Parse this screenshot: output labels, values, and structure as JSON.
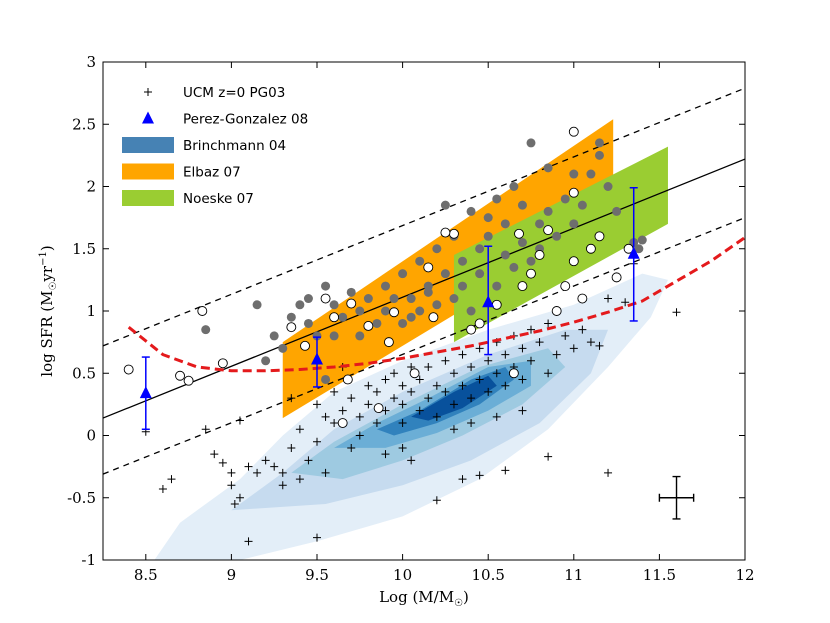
{
  "chart_data": {
    "type": "scatter",
    "xlabel": "Log (M/M",
    "xlabel_sub": "☉",
    "xlabel_close": ")",
    "ylabel": "log SFR (M",
    "ylabel_sub": "☉",
    "ylabel_unit": "yr",
    "ylabel_sup": "−1",
    "ylabel_close": ")",
    "xlim": [
      8.25,
      12.0
    ],
    "ylim": [
      -1.0,
      3.0
    ],
    "xticks": [
      8.5,
      9,
      9.5,
      10,
      10.5,
      11,
      11.5,
      12
    ],
    "xtick_labels": [
      "8.5",
      "9",
      "9.5",
      "10",
      "10.5",
      "11",
      "11.5",
      "12"
    ],
    "yticks": [
      -1,
      -0.5,
      0,
      0.5,
      1,
      1.5,
      2,
      2.5,
      3
    ],
    "ytick_labels": [
      "-1",
      "-0.5",
      "0",
      "0.5",
      "1",
      "1.5",
      "2",
      "2.5",
      "3"
    ],
    "legend": [
      {
        "label": "UCM z=0 PG03",
        "marker": "plus",
        "color": "#000000"
      },
      {
        "label": "Perez-Gonzalez 08",
        "marker": "triangle",
        "color": "#0000ff"
      },
      {
        "label": "Brinchmann 04",
        "marker": "patch",
        "color": "#4682b4"
      },
      {
        "label": "Elbaz 07",
        "marker": "patch",
        "color": "#ffa500"
      },
      {
        "label": "Noeske 07",
        "marker": "patch",
        "color": "#9acd32"
      }
    ],
    "colors": {
      "brinchmann": "#2166ac",
      "elbaz": "#ffa500",
      "noeske": "#9acd32",
      "triangle": "#0000ff",
      "dashed_red": "#e41a1c",
      "filled_circle": "#6e6e6e"
    },
    "brinchmann_contours": [
      {
        "level": 1,
        "points": [
          [
            8.55,
            -1
          ],
          [
            8.7,
            -0.7
          ],
          [
            9.05,
            -0.35
          ],
          [
            9.3,
            0
          ],
          [
            9.6,
            0.35
          ],
          [
            10.0,
            0.6
          ],
          [
            10.5,
            0.85
          ],
          [
            11.0,
            1.05
          ],
          [
            11.4,
            1.3
          ],
          [
            11.55,
            1.25
          ],
          [
            11.45,
            0.95
          ],
          [
            11.2,
            0.55
          ],
          [
            10.85,
            0.05
          ],
          [
            10.45,
            -0.35
          ],
          [
            10.0,
            -0.65
          ],
          [
            9.5,
            -0.85
          ],
          [
            9.05,
            -1
          ]
        ]
      },
      {
        "level": 2,
        "points": [
          [
            9.0,
            -0.6
          ],
          [
            9.3,
            -0.3
          ],
          [
            9.6,
            0.05
          ],
          [
            10.0,
            0.35
          ],
          [
            10.5,
            0.65
          ],
          [
            10.95,
            0.85
          ],
          [
            11.2,
            0.85
          ],
          [
            11.1,
            0.5
          ],
          [
            10.8,
            0.1
          ],
          [
            10.4,
            -0.2
          ],
          [
            10.0,
            -0.4
          ],
          [
            9.55,
            -0.55
          ]
        ]
      },
      {
        "level": 3,
        "points": [
          [
            9.35,
            -0.3
          ],
          [
            9.6,
            -0.05
          ],
          [
            10.0,
            0.25
          ],
          [
            10.45,
            0.55
          ],
          [
            10.85,
            0.7
          ],
          [
            10.95,
            0.55
          ],
          [
            10.7,
            0.25
          ],
          [
            10.35,
            0.0
          ],
          [
            10.0,
            -0.2
          ],
          [
            9.65,
            -0.35
          ]
        ]
      },
      {
        "level": 4,
        "points": [
          [
            9.6,
            -0.1
          ],
          [
            9.85,
            0.1
          ],
          [
            10.15,
            0.3
          ],
          [
            10.5,
            0.55
          ],
          [
            10.75,
            0.6
          ],
          [
            10.75,
            0.4
          ],
          [
            10.5,
            0.2
          ],
          [
            10.2,
            0.02
          ],
          [
            9.9,
            -0.1
          ]
        ]
      },
      {
        "level": 5,
        "points": [
          [
            9.85,
            0.05
          ],
          [
            10.1,
            0.2
          ],
          [
            10.4,
            0.45
          ],
          [
            10.6,
            0.55
          ],
          [
            10.65,
            0.45
          ],
          [
            10.45,
            0.25
          ],
          [
            10.2,
            0.1
          ],
          [
            9.95,
            0.0
          ]
        ]
      },
      {
        "level": 6,
        "points": [
          [
            10.05,
            0.15
          ],
          [
            10.3,
            0.35
          ],
          [
            10.5,
            0.48
          ],
          [
            10.55,
            0.4
          ],
          [
            10.35,
            0.22
          ],
          [
            10.15,
            0.12
          ]
        ]
      }
    ],
    "elbaz_band": [
      [
        9.3,
        0.14
      ],
      [
        11.23,
        1.74
      ],
      [
        11.23,
        2.54
      ],
      [
        9.3,
        0.75
      ]
    ],
    "noeske_band": [
      [
        10.3,
        0.75
      ],
      [
        11.55,
        1.7
      ],
      [
        11.55,
        2.32
      ],
      [
        10.3,
        1.45
      ]
    ],
    "main_line": {
      "x": [
        8.25,
        12.0
      ],
      "y": [
        0.14,
        2.22
      ]
    },
    "upper_dashed": {
      "x": [
        8.25,
        12.0
      ],
      "y": [
        0.72,
        2.79
      ]
    },
    "lower_dashed": {
      "x": [
        8.25,
        12.0
      ],
      "y": [
        -0.31,
        1.75
      ]
    },
    "red_dashed": {
      "x": [
        8.4,
        8.6,
        8.8,
        9.0,
        9.2,
        9.4,
        9.6,
        9.8,
        10.0,
        10.2,
        10.4,
        10.6,
        10.8,
        11.0,
        11.2,
        11.4,
        11.6,
        11.8,
        12.0
      ],
      "y": [
        0.87,
        0.65,
        0.55,
        0.52,
        0.52,
        0.53,
        0.55,
        0.58,
        0.62,
        0.67,
        0.72,
        0.78,
        0.84,
        0.91,
        0.99,
        1.08,
        1.24,
        1.4,
        1.59
      ]
    },
    "perez_gonzalez": [
      {
        "x": 8.5,
        "y": 0.34,
        "err_lo": 0.29,
        "err_hi": 0.29
      },
      {
        "x": 9.5,
        "y": 0.61,
        "err_lo": 0.22,
        "err_hi": 0.18
      },
      {
        "x": 10.5,
        "y": 1.07,
        "err_lo": 0.42,
        "err_hi": 0.45
      },
      {
        "x": 11.35,
        "y": 1.46,
        "err_lo": 0.54,
        "err_hi": 0.53
      }
    ],
    "ucm_points": [
      [
        8.5,
        0.03
      ],
      [
        8.65,
        -0.35
      ],
      [
        8.6,
        -0.43
      ],
      [
        8.85,
        0.05
      ],
      [
        8.9,
        -0.15
      ],
      [
        8.95,
        -0.22
      ],
      [
        9.0,
        -0.3
      ],
      [
        9.0,
        -0.4
      ],
      [
        9.05,
        -0.5
      ],
      [
        9.02,
        -0.55
      ],
      [
        9.05,
        0.12
      ],
      [
        9.1,
        -0.85
      ],
      [
        9.1,
        -0.25
      ],
      [
        9.15,
        -0.3
      ],
      [
        9.2,
        -0.2
      ],
      [
        9.25,
        -0.25
      ],
      [
        9.3,
        -0.4
      ],
      [
        9.3,
        -0.3
      ],
      [
        9.35,
        -0.1
      ],
      [
        9.4,
        -0.35
      ],
      [
        9.4,
        0.05
      ],
      [
        9.45,
        -0.2
      ],
      [
        9.5,
        0.25
      ],
      [
        9.5,
        -0.05
      ],
      [
        9.5,
        -0.82
      ],
      [
        9.55,
        0.15
      ],
      [
        9.55,
        -0.3
      ],
      [
        9.6,
        0.1
      ],
      [
        9.6,
        0.35
      ],
      [
        9.65,
        0.2
      ],
      [
        9.65,
        0.55
      ],
      [
        9.7,
        -0.1
      ],
      [
        9.7,
        0.3
      ],
      [
        9.75,
        0.0
      ],
      [
        9.75,
        0.15
      ],
      [
        9.8,
        0.4
      ],
      [
        9.8,
        0.25
      ],
      [
        9.85,
        0.35
      ],
      [
        9.85,
        0.1
      ],
      [
        9.9,
        0.45
      ],
      [
        9.9,
        0.2
      ],
      [
        9.95,
        0.5
      ],
      [
        9.95,
        0.3
      ],
      [
        10.0,
        0.4
      ],
      [
        10.0,
        0.1
      ],
      [
        10.0,
        0.25
      ],
      [
        10.05,
        0.55
      ],
      [
        10.05,
        0.35
      ],
      [
        10.1,
        0.2
      ],
      [
        10.1,
        0.45
      ],
      [
        10.15,
        0.3
      ],
      [
        10.15,
        0.55
      ],
      [
        10.2,
        0.4
      ],
      [
        10.2,
        0.15
      ],
      [
        10.25,
        0.6
      ],
      [
        10.25,
        0.35
      ],
      [
        10.3,
        0.5
      ],
      [
        10.3,
        0.25
      ],
      [
        10.35,
        0.65
      ],
      [
        10.35,
        0.4
      ],
      [
        10.4,
        0.3
      ],
      [
        10.4,
        0.55
      ],
      [
        10.45,
        0.7
      ],
      [
        10.45,
        0.45
      ],
      [
        10.5,
        0.6
      ],
      [
        10.5,
        0.35
      ],
      [
        10.55,
        0.75
      ],
      [
        10.55,
        0.5
      ],
      [
        10.6,
        0.65
      ],
      [
        10.6,
        0.4
      ],
      [
        10.65,
        0.8
      ],
      [
        10.65,
        0.55
      ],
      [
        10.7,
        0.7
      ],
      [
        10.7,
        0.45
      ],
      [
        10.75,
        0.85
      ],
      [
        10.75,
        0.6
      ],
      [
        10.8,
        0.75
      ],
      [
        10.85,
        0.9
      ],
      [
        10.85,
        0.5
      ],
      [
        10.9,
        0.65
      ],
      [
        10.95,
        0.8
      ],
      [
        11.0,
        0.7
      ],
      [
        11.05,
        0.85
      ],
      [
        11.1,
        0.75
      ],
      [
        11.15,
        0.72
      ],
      [
        11.2,
        1.1
      ],
      [
        11.3,
        1.07
      ],
      [
        11.35,
        1.38
      ],
      [
        11.6,
        0.99
      ],
      [
        10.2,
        -0.52
      ],
      [
        10.35,
        -0.35
      ],
      [
        10.45,
        -0.32
      ],
      [
        10.6,
        -0.28
      ],
      [
        10.85,
        -0.17
      ],
      [
        11.2,
        -0.3
      ],
      [
        10.0,
        -0.1
      ],
      [
        10.05,
        -0.2
      ],
      [
        9.9,
        -0.15
      ],
      [
        10.3,
        0.05
      ],
      [
        10.4,
        0.1
      ],
      [
        10.55,
        0.15
      ],
      [
        10.7,
        0.2
      ],
      [
        9.35,
        0.3
      ]
    ],
    "filled_circles": [
      [
        8.85,
        0.85
      ],
      [
        9.15,
        1.05
      ],
      [
        9.2,
        0.6
      ],
      [
        9.25,
        0.8
      ],
      [
        9.3,
        0.7
      ],
      [
        9.35,
        0.95
      ],
      [
        9.4,
        1.05
      ],
      [
        9.45,
        0.9
      ],
      [
        9.45,
        1.1
      ],
      [
        9.5,
        0.8
      ],
      [
        9.55,
        1.2
      ],
      [
        9.6,
        1.05
      ],
      [
        9.6,
        0.8
      ],
      [
        9.65,
        0.95
      ],
      [
        9.7,
        1.15
      ],
      [
        9.75,
        1.0
      ],
      [
        9.75,
        0.8
      ],
      [
        9.8,
        1.1
      ],
      [
        9.85,
        0.9
      ],
      [
        9.9,
        1.2
      ],
      [
        9.9,
        1.0
      ],
      [
        9.95,
        1.1
      ],
      [
        10.0,
        1.3
      ],
      [
        10.0,
        0.9
      ],
      [
        10.05,
        1.1
      ],
      [
        10.1,
        1.4
      ],
      [
        10.1,
        1.0
      ],
      [
        10.15,
        1.2
      ],
      [
        10.2,
        1.5
      ],
      [
        10.2,
        1.05
      ],
      [
        10.25,
        1.85
      ],
      [
        10.25,
        1.3
      ],
      [
        10.3,
        1.1
      ],
      [
        10.3,
        1.6
      ],
      [
        10.35,
        1.4
      ],
      [
        10.35,
        1.2
      ],
      [
        10.4,
        1.0
      ],
      [
        10.4,
        1.8
      ],
      [
        10.45,
        1.5
      ],
      [
        10.45,
        1.3
      ],
      [
        10.5,
        1.75
      ],
      [
        10.5,
        1.6
      ],
      [
        10.55,
        1.2
      ],
      [
        10.55,
        1.9
      ],
      [
        10.6,
        1.45
      ],
      [
        10.6,
        1.7
      ],
      [
        10.65,
        2.0
      ],
      [
        10.65,
        1.35
      ],
      [
        10.7,
        1.55
      ],
      [
        10.7,
        1.85
      ],
      [
        10.75,
        1.4
      ],
      [
        10.75,
        2.35
      ],
      [
        10.8,
        1.7
      ],
      [
        10.8,
        1.5
      ],
      [
        10.85,
        2.15
      ],
      [
        10.85,
        1.8
      ],
      [
        10.9,
        1.6
      ],
      [
        10.95,
        1.9
      ],
      [
        11.0,
        2.1
      ],
      [
        11.0,
        1.7
      ],
      [
        11.05,
        1.85
      ],
      [
        11.1,
        2.1
      ],
      [
        11.15,
        2.25
      ],
      [
        11.2,
        2.0
      ],
      [
        11.25,
        1.8
      ],
      [
        11.35,
        1.55
      ],
      [
        11.38,
        1.5
      ],
      [
        11.4,
        1.57
      ],
      [
        11.15,
        2.35
      ],
      [
        10.15,
        1.15
      ],
      [
        10.05,
        0.95
      ],
      [
        9.55,
        0.45
      ]
    ],
    "open_circles": [
      [
        8.4,
        0.53
      ],
      [
        8.7,
        0.48
      ],
      [
        8.75,
        0.44
      ],
      [
        8.83,
        1.0
      ],
      [
        8.95,
        0.58
      ],
      [
        9.35,
        0.87
      ],
      [
        9.43,
        0.72
      ],
      [
        9.55,
        1.1
      ],
      [
        9.6,
        0.95
      ],
      [
        9.7,
        1.06
      ],
      [
        9.8,
        0.88
      ],
      [
        9.95,
        0.99
      ],
      [
        10.15,
        1.35
      ],
      [
        10.3,
        1.62
      ],
      [
        10.4,
        0.85
      ],
      [
        10.45,
        0.9
      ],
      [
        10.55,
        1.05
      ],
      [
        10.65,
        0.5
      ],
      [
        10.7,
        1.2
      ],
      [
        10.75,
        1.3
      ],
      [
        10.8,
        1.45
      ],
      [
        10.85,
        1.65
      ],
      [
        10.9,
        1.0
      ],
      [
        10.95,
        1.2
      ],
      [
        11.0,
        1.4
      ],
      [
        11.05,
        1.1
      ],
      [
        11.1,
        1.5
      ],
      [
        11.15,
        1.6
      ],
      [
        11.25,
        1.27
      ],
      [
        11.32,
        1.5
      ],
      [
        11.0,
        2.44
      ],
      [
        11.0,
        1.95
      ],
      [
        9.92,
        0.75
      ],
      [
        9.86,
        0.22
      ],
      [
        9.65,
        0.1
      ],
      [
        10.25,
        1.63
      ],
      [
        10.18,
        0.95
      ],
      [
        10.68,
        1.62
      ],
      [
        10.07,
        0.5
      ],
      [
        9.68,
        0.45
      ]
    ],
    "error_cross": {
      "x": 11.6,
      "y": -0.5,
      "dx": 0.1,
      "dy": 0.17
    }
  }
}
